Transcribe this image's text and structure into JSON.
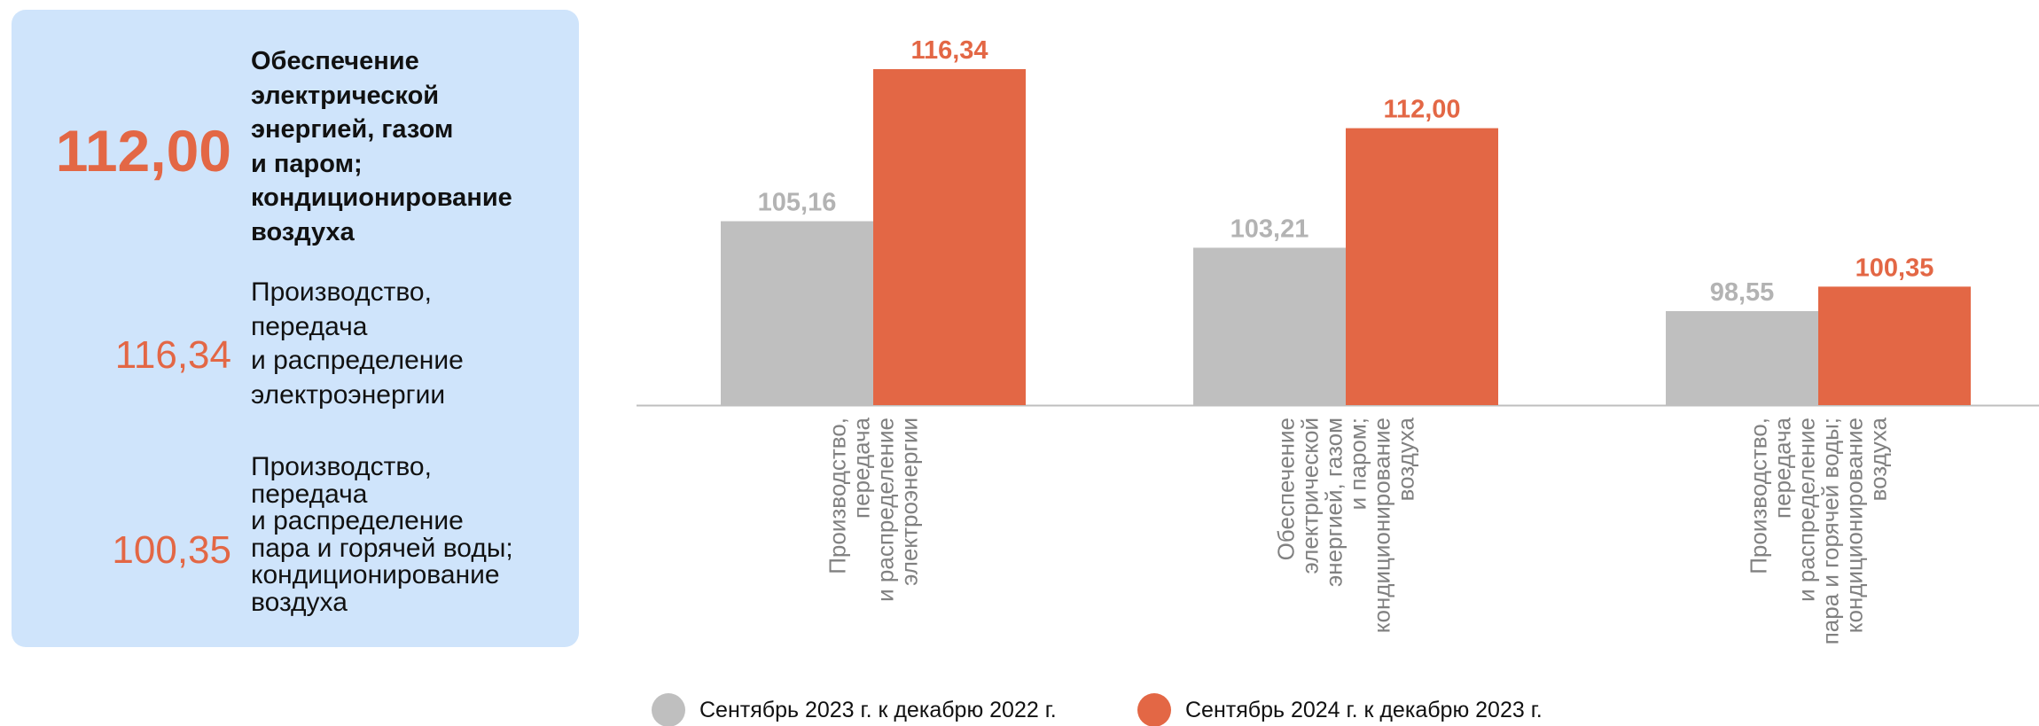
{
  "panel": {
    "items": [
      {
        "value": "112,00",
        "text": "Обеспечение\nэлектрической\nэнергией, газом\nи паром;\nкондиционирование\nвоздуха"
      },
      {
        "value": "116,34",
        "text": "Производство,\nпередача\nи распределение\nэлектроэнергии"
      },
      {
        "value": "100,35",
        "text": "Производство,\nпередача\nи распределение\nпара и горячей воды;\nкондиционирование\nвоздуха"
      }
    ]
  },
  "colors": {
    "series1": "#bfbfbf",
    "series2": "#e36745",
    "axis": "#bfbfbf",
    "panel_bg": "#cfe4fb"
  },
  "chart_data": {
    "type": "bar",
    "categories": [
      [
        "Производство,",
        "передача",
        "и распределение",
        "электроэнергии"
      ],
      [
        "Обеспечение",
        "электрической",
        "энергией, газом",
        "и паром;",
        "кондиционирование",
        "воздуха"
      ],
      [
        "Производство,",
        "передача",
        "и распределение",
        "пара и горячей воды;",
        "кондиционирование",
        "воздуха"
      ]
    ],
    "series": [
      {
        "name": "Сентябрь 2023 г. к декабрю 2022 г.",
        "values": [
          105.16,
          103.21,
          98.55
        ],
        "labels": [
          "105,16",
          "103,21",
          "98,55"
        ]
      },
      {
        "name": "Сентябрь 2024 г. к декабрю 2023 г.",
        "values": [
          116.34,
          112.0,
          100.35
        ],
        "labels": [
          "116,34",
          "112,00",
          "100,35"
        ]
      }
    ],
    "ylim": [
      91.64,
      116.34
    ],
    "legend": "bottom",
    "grid": false
  }
}
